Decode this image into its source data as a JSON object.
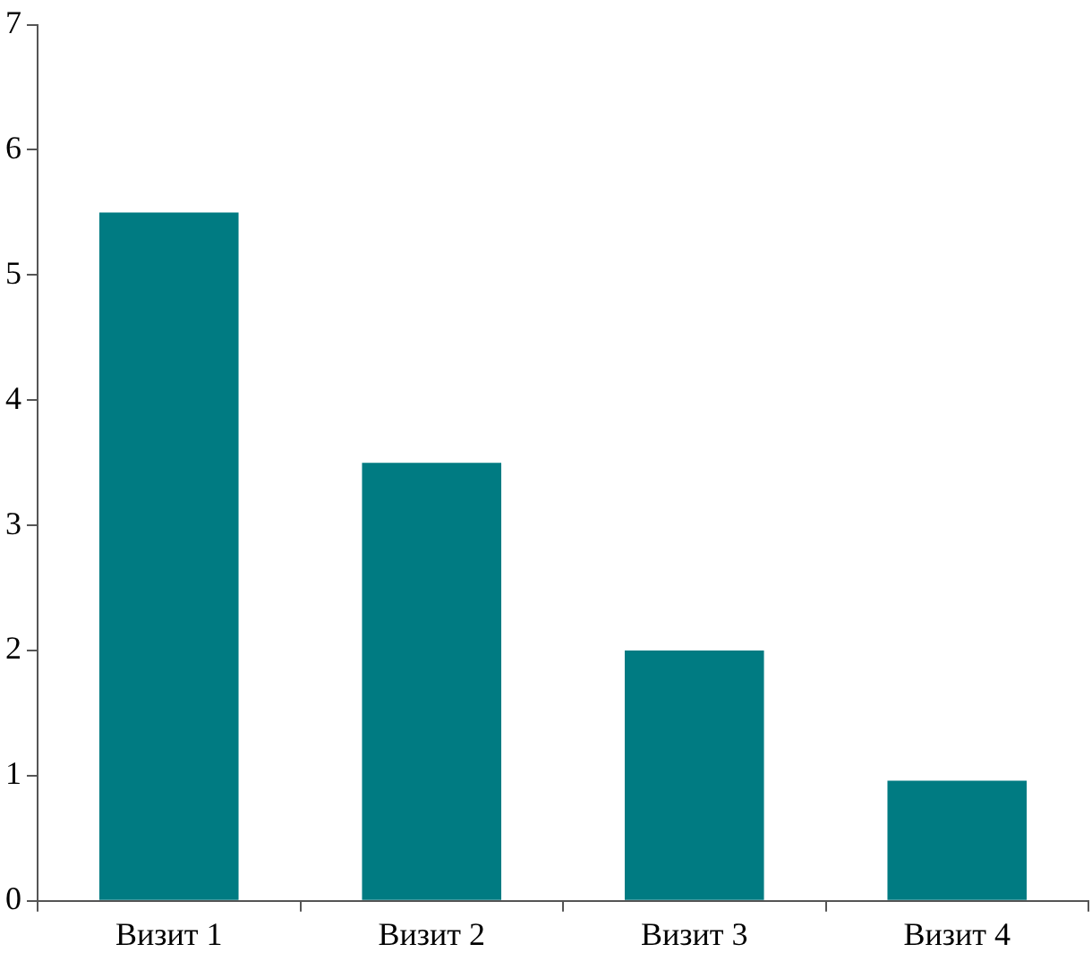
{
  "chart_data": {
    "type": "bar",
    "categories": [
      "Визит 1",
      "Визит 2",
      "Визит 3",
      "Визит 4"
    ],
    "values": [
      5.5,
      3.5,
      2,
      0.96
    ],
    "color": "#007b82",
    "ylim": [
      0,
      7
    ],
    "yticks": [
      0,
      1,
      2,
      3,
      4,
      5,
      6,
      7
    ],
    "grid": false,
    "legend": false
  }
}
